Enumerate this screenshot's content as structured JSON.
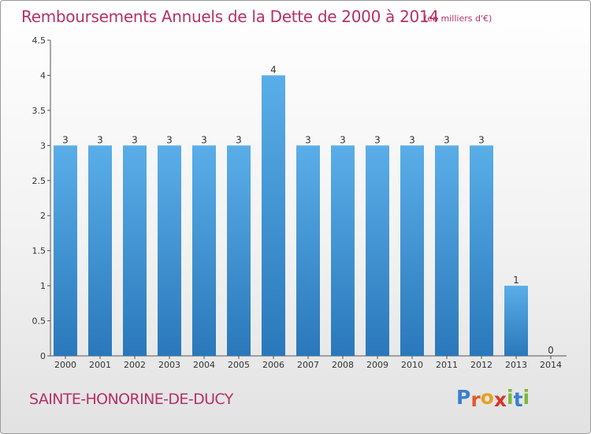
{
  "header": {
    "title": "Remboursements Annuels de la Dette de 2000 à 2014",
    "unit": "(en milliers d'€)"
  },
  "footer": {
    "commune": "SAINTE-HONORINE-DE-DUCY",
    "logo": [
      "P",
      "r",
      "o",
      "x",
      "i",
      "t",
      "i"
    ]
  },
  "colors": {
    "title": "#b5306a",
    "bar_light": "#5aaee8",
    "bar_dark": "#2a78bb",
    "axis": "#555555",
    "logo": [
      "#3a7fd0",
      "#e05a2a",
      "#e8a020",
      "#d8352a",
      "#7cb83a",
      "#3a7fd0",
      "#7cb83a"
    ]
  },
  "chart_data": {
    "type": "bar",
    "categories": [
      "2000",
      "2001",
      "2002",
      "2003",
      "2004",
      "2005",
      "2006",
      "2007",
      "2008",
      "2009",
      "2010",
      "2011",
      "2012",
      "2013",
      "2014"
    ],
    "values": [
      3,
      3,
      3,
      3,
      3,
      3,
      4,
      3,
      3,
      3,
      3,
      3,
      3,
      1,
      0
    ],
    "data_labels": [
      "3",
      "3",
      "3",
      "3",
      "3",
      "3",
      "4",
      "3",
      "3",
      "3",
      "3",
      "3",
      "3",
      "1",
      "0"
    ],
    "yticks": [
      0,
      0.5,
      1,
      1.5,
      2,
      2.5,
      3,
      3.5,
      4,
      4.5
    ],
    "ytick_labels": [
      "0",
      "0.5",
      "1",
      "1.5",
      "2",
      "2.5",
      "3",
      "3.5",
      "4",
      "4.5"
    ],
    "ylim": [
      0,
      4.5
    ],
    "xlabel": "",
    "ylabel": "",
    "grid": false
  }
}
